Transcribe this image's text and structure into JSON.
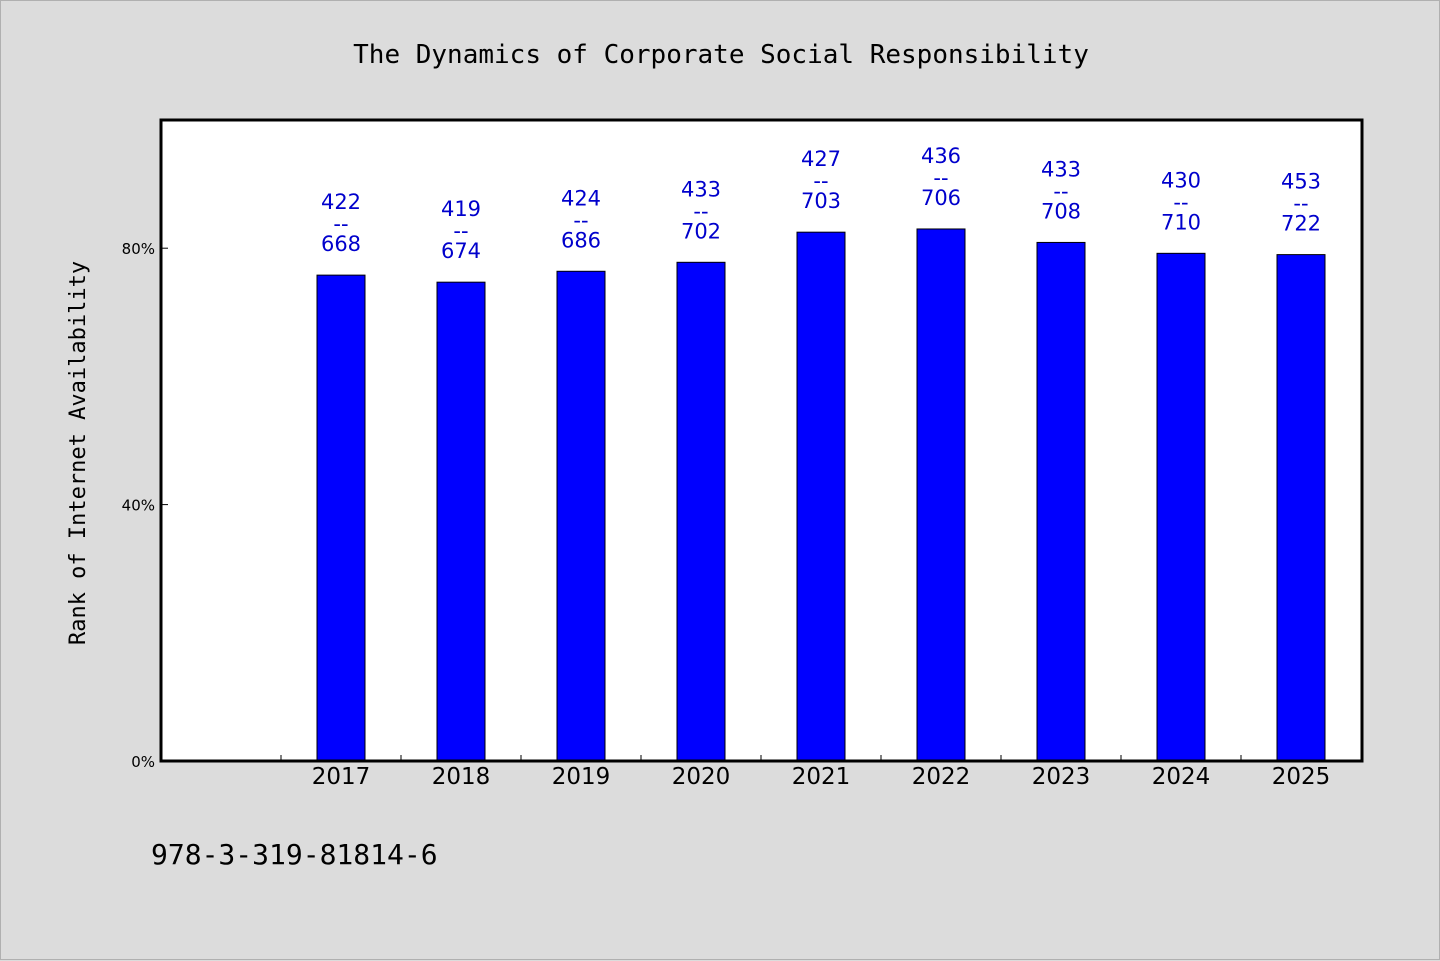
{
  "chart_data": {
    "type": "bar",
    "title": "The Dynamics of Corporate Social Responsibility",
    "ylabel": "Rank of Internet Availability",
    "xlabel": "",
    "categories": [
      "2017",
      "2018",
      "2019",
      "2020",
      "2021",
      "2022",
      "2023",
      "2024",
      "2025"
    ],
    "values": [
      75.8,
      74.7,
      76.4,
      77.8,
      82.5,
      83.0,
      80.9,
      79.2,
      79.0
    ],
    "labels_top": [
      "422",
      "419",
      "424",
      "433",
      "427",
      "436",
      "433",
      "430",
      "453"
    ],
    "labels_sep": "--",
    "labels_bottom": [
      "668",
      "674",
      "686",
      "702",
      "703",
      "706",
      "708",
      "710",
      "722"
    ],
    "y_ticks": [
      0,
      40,
      80
    ],
    "y_tick_labels": [
      "0%",
      "40%",
      "80%"
    ],
    "ylim": [
      0,
      100
    ],
    "bar_color": "#0000ff",
    "label_color": "#0000cc",
    "grid": false,
    "legend": "none"
  },
  "footer": {
    "code": "978-3-319-81814-6"
  }
}
